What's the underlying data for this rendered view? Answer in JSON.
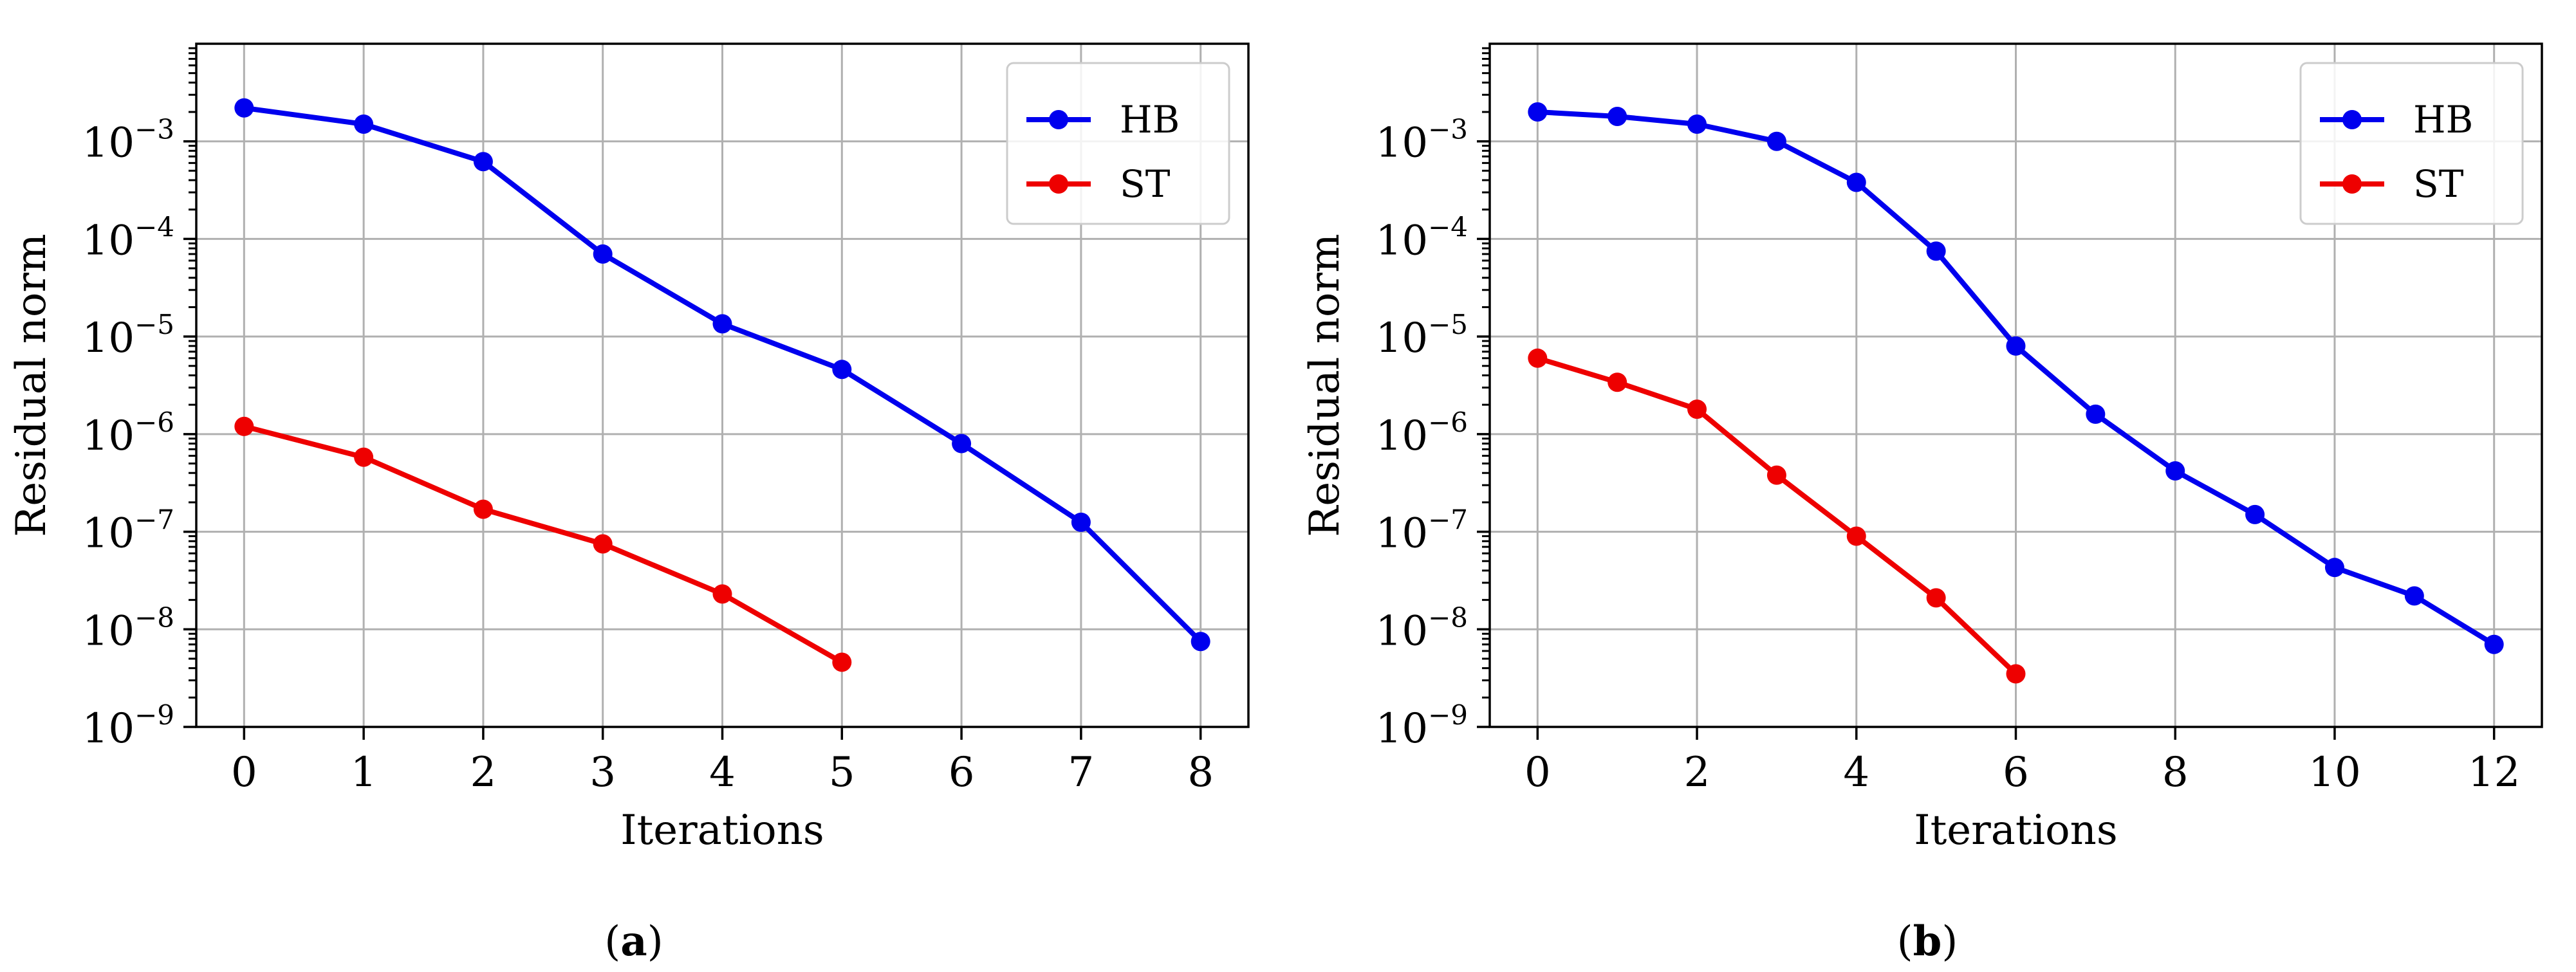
{
  "colors": {
    "HB": "#0000ee",
    "ST": "#ee0000",
    "grid": "#b0b0b0"
  },
  "chart_data": [
    {
      "type": "line",
      "caption": "a",
      "xlabel": "Iterations",
      "ylabel": "Residual norm",
      "y_scale": "log",
      "ylim": [
        1e-09,
        0.01
      ],
      "xlim": [
        -0.4,
        8.4
      ],
      "xticks": [
        0,
        1,
        2,
        3,
        4,
        5,
        6,
        7,
        8
      ],
      "xtick_labels": [
        "0",
        "1",
        "2",
        "3",
        "4",
        "5",
        "6",
        "7",
        "8"
      ],
      "yticks": [
        1e-09,
        1e-08,
        1e-07,
        1e-06,
        1e-05,
        0.0001,
        0.001
      ],
      "ytick_exponents": [
        "−9",
        "−8",
        "−7",
        "−6",
        "−5",
        "−4",
        "−3"
      ],
      "ytick_base": "10",
      "grid": true,
      "legend_position": "top-right",
      "series": [
        {
          "name": "HB",
          "color": "#0000ee",
          "x": [
            0,
            1,
            2,
            3,
            4,
            5,
            6,
            7,
            8
          ],
          "y": [
            0.0022,
            0.0015,
            0.00062,
            7e-05,
            1.35e-05,
            4.6e-06,
            8e-07,
            1.25e-07,
            7.5e-09
          ]
        },
        {
          "name": "ST",
          "color": "#ee0000",
          "x": [
            0,
            1,
            2,
            3,
            4,
            5
          ],
          "y": [
            1.2e-06,
            5.8e-07,
            1.7e-07,
            7.5e-08,
            2.3e-08,
            4.6e-09
          ]
        }
      ]
    },
    {
      "type": "line",
      "caption": "b",
      "xlabel": "Iterations",
      "ylabel": "Residual norm",
      "y_scale": "log",
      "ylim": [
        1e-09,
        0.01
      ],
      "xlim": [
        -0.6,
        12.6
      ],
      "xticks": [
        0,
        2,
        4,
        6,
        8,
        10,
        12
      ],
      "xtick_labels": [
        "0",
        "2",
        "4",
        "6",
        "8",
        "10",
        "12"
      ],
      "yticks": [
        1e-09,
        1e-08,
        1e-07,
        1e-06,
        1e-05,
        0.0001,
        0.001
      ],
      "ytick_exponents": [
        "−9",
        "−8",
        "−7",
        "−6",
        "−5",
        "−4",
        "−3"
      ],
      "ytick_base": "10",
      "grid": true,
      "legend_position": "top-right",
      "series": [
        {
          "name": "HB",
          "color": "#0000ee",
          "x": [
            0,
            1,
            2,
            3,
            4,
            5,
            6,
            7,
            8,
            9,
            10,
            11,
            12
          ],
          "y": [
            0.002,
            0.0018,
            0.0015,
            0.001,
            0.00038,
            7.5e-05,
            8e-06,
            1.6e-06,
            4.2e-07,
            1.5e-07,
            4.3e-08,
            2.2e-08,
            7e-09
          ]
        },
        {
          "name": "ST",
          "color": "#ee0000",
          "x": [
            0,
            1,
            2,
            3,
            4,
            5,
            6
          ],
          "y": [
            6e-06,
            3.4e-06,
            1.8e-06,
            3.8e-07,
            9e-08,
            2.1e-08,
            3.5e-09
          ]
        }
      ]
    }
  ]
}
